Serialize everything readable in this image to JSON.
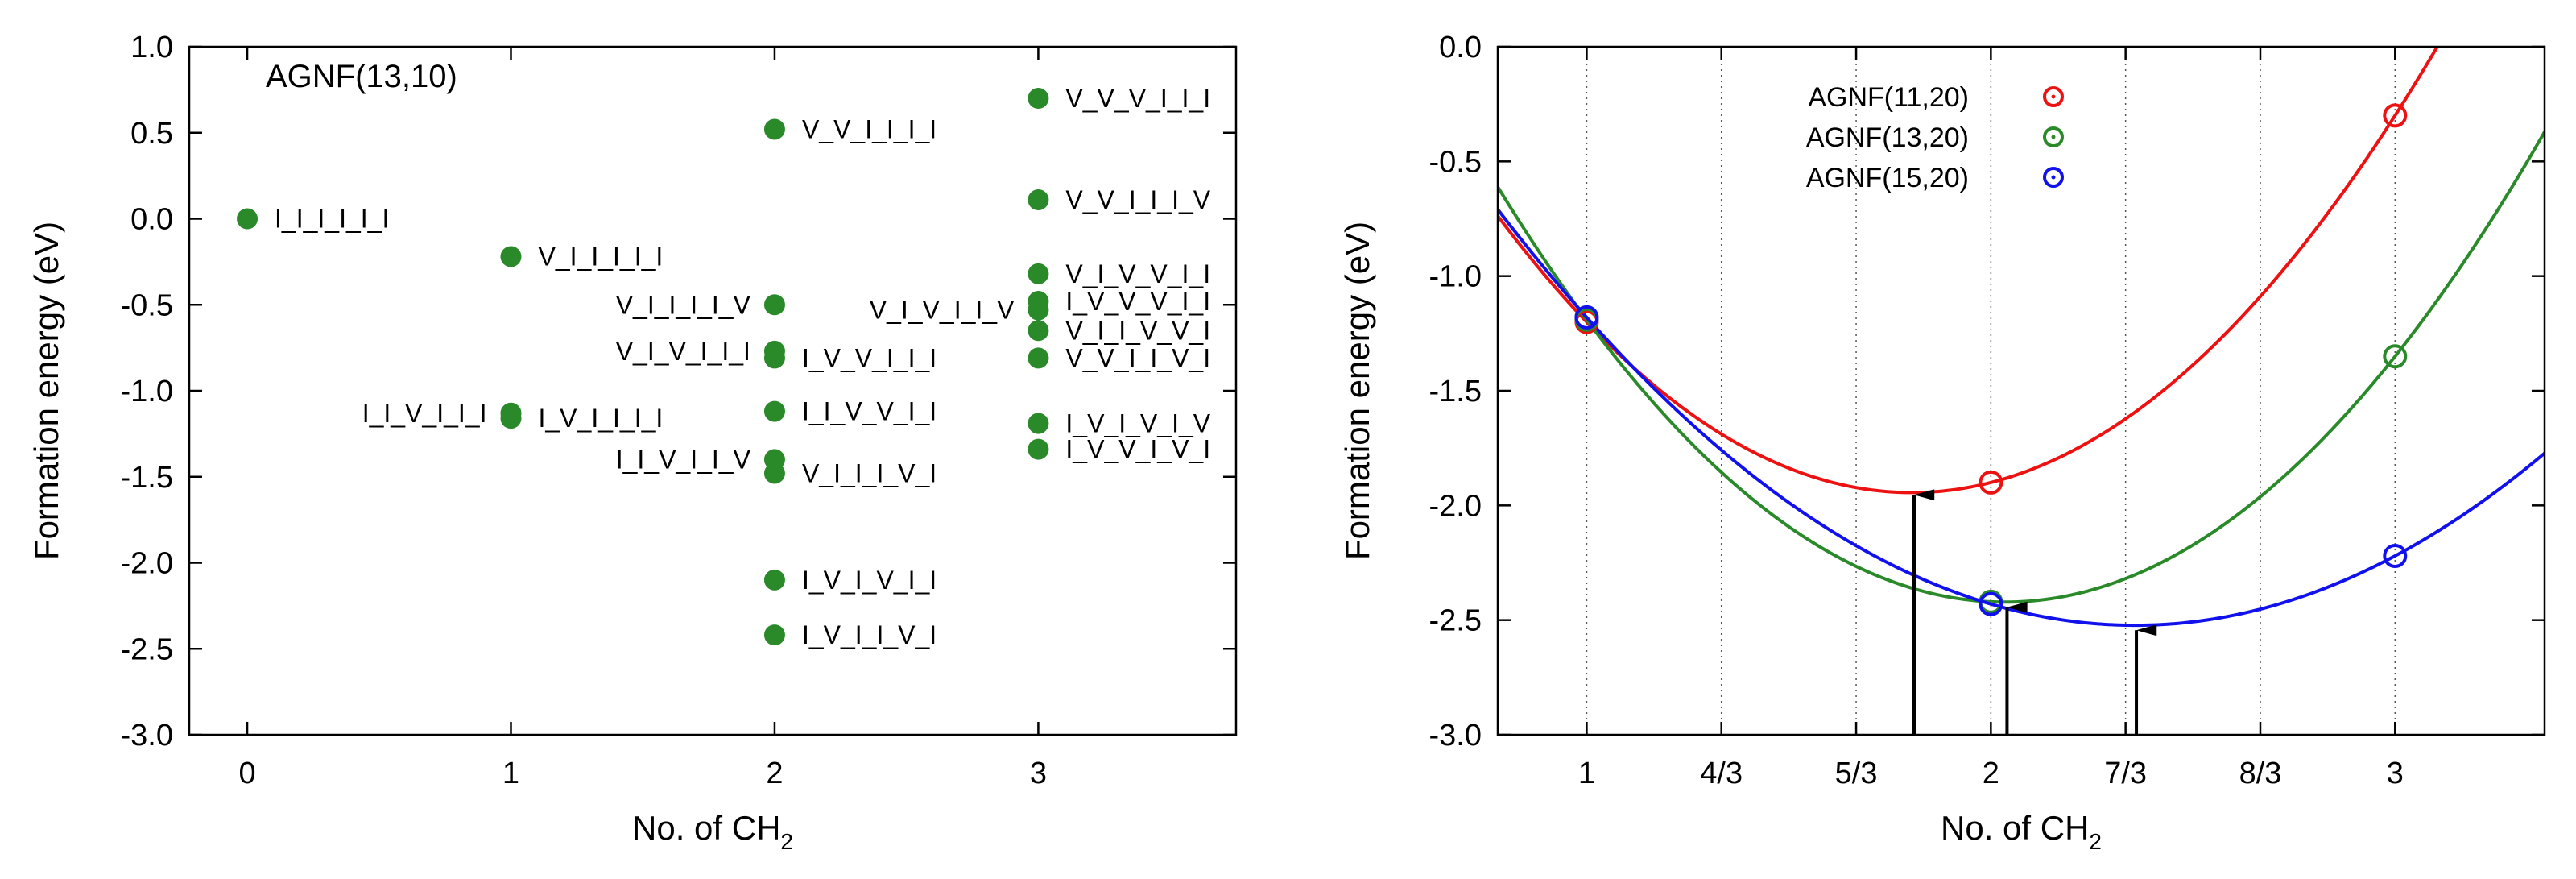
{
  "chart_data": [
    {
      "type": "scatter",
      "title": "AGNF(13,10)",
      "xlabel": "No. of CH",
      "xlabel_subscript": "2",
      "ylabel": "Formation energy (eV)",
      "xlim": [
        -0.22,
        3.75
      ],
      "ylim": [
        -3.0,
        1.0
      ],
      "xticks": [
        0,
        1,
        2,
        3
      ],
      "xtick_labels": [
        "0",
        "1",
        "2",
        "3"
      ],
      "yticks": [
        1.0,
        0.5,
        0.0,
        -0.5,
        -1.0,
        -1.5,
        -2.0,
        -2.5,
        -3.0
      ],
      "ytick_labels": [
        "1.0",
        "0.5",
        "0.0",
        "-0.5",
        "-1.0",
        "-1.5",
        "-2.0",
        "-2.5",
        "-3.0"
      ],
      "grid": false,
      "marker_color": "#2a8a2a",
      "points": [
        {
          "x": 0,
          "y": 0.0,
          "label": "I_I_I_I_I_I",
          "label_side": "right"
        },
        {
          "x": 1,
          "y": -0.22,
          "label": "V_I_I_I_I_I",
          "label_side": "right"
        },
        {
          "x": 1,
          "y": -1.13,
          "label": "I_I_V_I_I_I",
          "label_side": "left"
        },
        {
          "x": 1,
          "y": -1.16,
          "label": "I_V_I_I_I_I",
          "label_side": "right"
        },
        {
          "x": 2,
          "y": 0.52,
          "label": "V_V_I_I_I_I",
          "label_side": "right"
        },
        {
          "x": 2,
          "y": -0.5,
          "label": "V_I_I_I_I_V",
          "label_side": "left"
        },
        {
          "x": 2,
          "y": -0.77,
          "label": "V_I_V_I_I_I",
          "label_side": "left"
        },
        {
          "x": 2,
          "y": -0.81,
          "label": "I_V_V_I_I_I",
          "label_side": "right"
        },
        {
          "x": 2,
          "y": -1.12,
          "label": "I_I_V_V_I_I",
          "label_side": "right"
        },
        {
          "x": 2,
          "y": -1.4,
          "label": "I_I_V_I_I_V",
          "label_side": "left"
        },
        {
          "x": 2,
          "y": -1.48,
          "label": "V_I_I_I_V_I",
          "label_side": "right"
        },
        {
          "x": 2,
          "y": -2.1,
          "label": "I_V_I_V_I_I",
          "label_side": "right"
        },
        {
          "x": 2,
          "y": -2.42,
          "label": "I_V_I_I_V_I",
          "label_side": "right"
        },
        {
          "x": 3,
          "y": 0.7,
          "label": "V_V_V_I_I_I",
          "label_side": "right"
        },
        {
          "x": 3,
          "y": 0.11,
          "label": "V_V_I_I_I_V",
          "label_side": "right"
        },
        {
          "x": 3,
          "y": -0.32,
          "label": "V_I_V_V_I_I",
          "label_side": "right"
        },
        {
          "x": 3,
          "y": -0.48,
          "label": "I_V_V_V_I_I",
          "label_side": "right"
        },
        {
          "x": 3,
          "y": -0.53,
          "label": "V_I_V_I_I_V",
          "label_side": "left"
        },
        {
          "x": 3,
          "y": -0.65,
          "label": "V_I_I_V_V_I",
          "label_side": "right"
        },
        {
          "x": 3,
          "y": -0.81,
          "label": "V_V_I_I_V_I",
          "label_side": "right"
        },
        {
          "x": 3,
          "y": -1.19,
          "label": "I_V_I_V_I_V",
          "label_side": "right"
        },
        {
          "x": 3,
          "y": -1.34,
          "label": "I_V_V_I_V_I",
          "label_side": "right"
        }
      ]
    },
    {
      "type": "line",
      "xlabel": "No. of CH",
      "xlabel_subscript": "2",
      "ylabel": "Formation energy (eV)",
      "xlim": [
        0.78,
        3.37
      ],
      "ylim": [
        -3.0,
        0.0
      ],
      "xticks": [
        1,
        1.3333,
        1.6667,
        2,
        2.3333,
        2.6667,
        3
      ],
      "xtick_labels": [
        "1",
        "4/3",
        "5/3",
        "2",
        "7/3",
        "8/3",
        "3"
      ],
      "yticks": [
        0.0,
        -0.5,
        -1.0,
        -1.5,
        -2.0,
        -2.5,
        -3.0
      ],
      "ytick_labels": [
        "0.0",
        "-0.5",
        "-1.0",
        "-1.5",
        "-2.0",
        "-2.5",
        "-3.0"
      ],
      "grid": "vertical dotted lines at x ticks",
      "legend_position": "top-left",
      "series": [
        {
          "name": "AGNF(11,20)",
          "color": "#ee1111",
          "points_x": [
            1,
            2,
            3
          ],
          "points_y": [
            -1.2,
            -1.9,
            -0.3
          ],
          "minimum_x": 1.81,
          "minimum_y": -1.94
        },
        {
          "name": "AGNF(13,20)",
          "color": "#2a8a2a",
          "points_x": [
            1,
            2,
            3
          ],
          "points_y": [
            -1.19,
            -2.42,
            -1.35
          ],
          "minimum_x": 2.04,
          "minimum_y": -2.43
        },
        {
          "name": "AGNF(15,20)",
          "color": "#1111ee",
          "points_x": [
            1,
            2,
            3
          ],
          "points_y": [
            -1.18,
            -2.43,
            -2.22
          ],
          "minimum_x": 2.36,
          "minimum_y": -2.53
        }
      ],
      "arrow_color": "#000000"
    }
  ]
}
